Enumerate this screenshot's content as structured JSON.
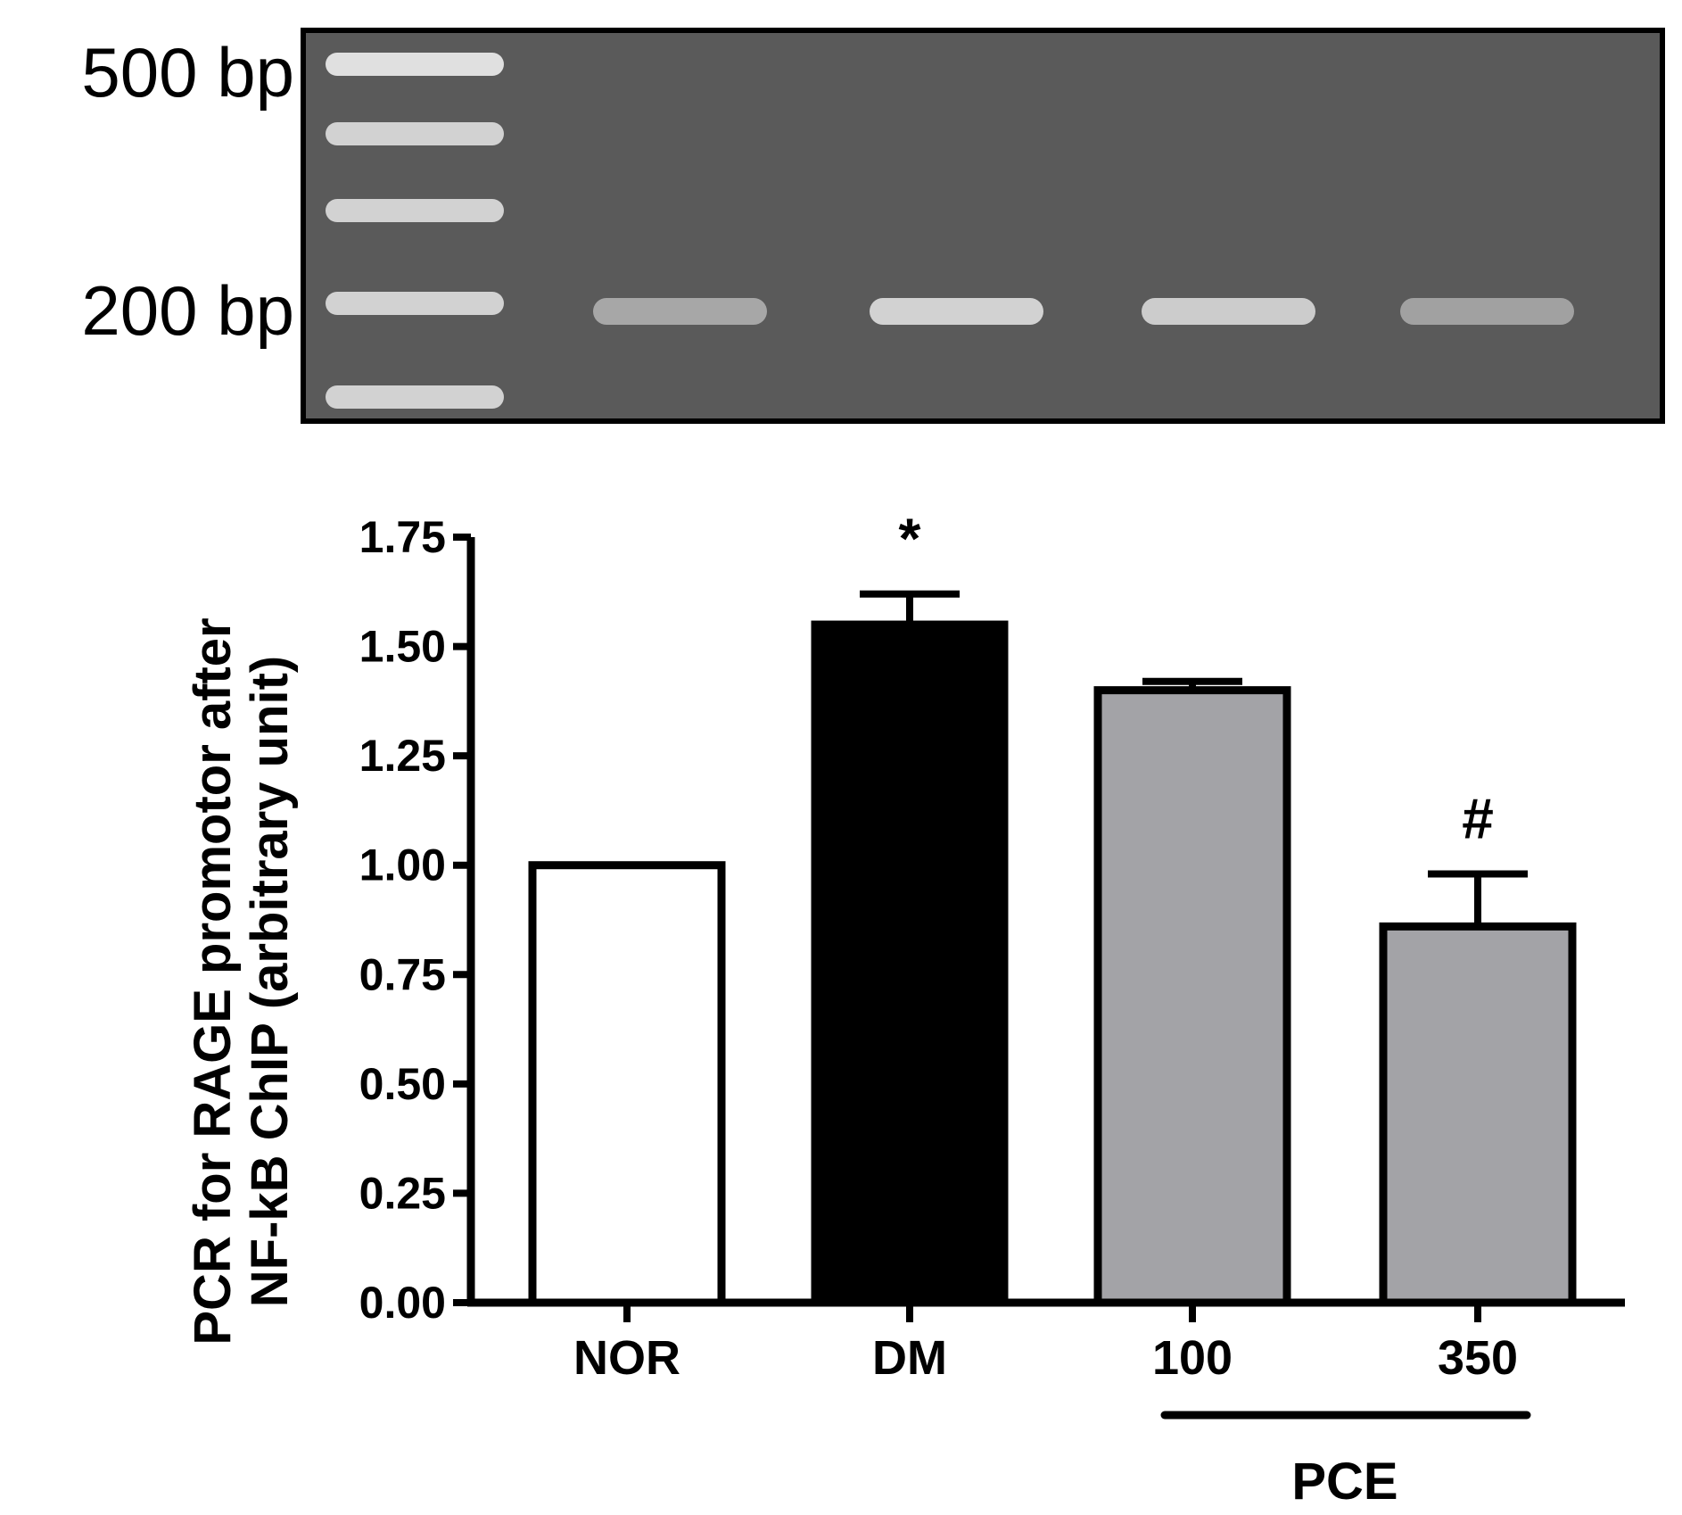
{
  "gel": {
    "size_markers": [
      "500 bp",
      "200 bp"
    ],
    "ladder_bands": 5,
    "sample_band_intensity": [
      0.55,
      0.85,
      0.8,
      0.5
    ],
    "colors": {
      "background": "#5a5a5a",
      "band": "#e8e8e8",
      "frame": "#000000"
    }
  },
  "chart_data": {
    "type": "bar",
    "categories": [
      "NOR",
      "DM",
      "100",
      "350"
    ],
    "values": [
      1.0,
      1.55,
      1.4,
      0.86
    ],
    "errors": [
      0.0,
      0.07,
      0.02,
      0.12
    ],
    "significance": [
      "",
      "*",
      "",
      "#"
    ],
    "bar_colors": [
      "#ffffff",
      "#000000",
      "#a3a3a7",
      "#a3a3a7"
    ],
    "ylabel_lines": [
      "PCR for RAGE promotor after",
      "NF-kB ChIP (arbitrary unit)"
    ],
    "ylim": [
      0,
      1.75
    ],
    "yticks": [
      "0.00",
      "0.25",
      "0.50",
      "0.75",
      "1.00",
      "1.25",
      "1.50",
      "1.75"
    ],
    "group": {
      "label": "PCE",
      "categories": [
        "100",
        "350"
      ]
    }
  }
}
